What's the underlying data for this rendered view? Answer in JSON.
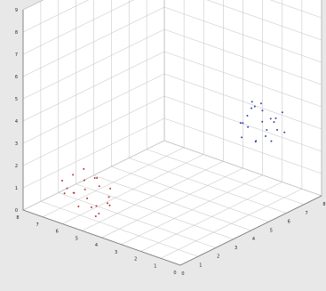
{
  "colors": {
    "figure_background": "#e8e8e8",
    "pane": "#ffffff",
    "grid": "#c9c9c9",
    "axis": "#777777",
    "marker_blue": "#3b43a6",
    "marker_red": "#b03a3a"
  },
  "chart_data": {
    "type": "scatter",
    "projection": "3d",
    "grid": true,
    "title": "",
    "xlabel": "",
    "ylabel": "",
    "zlabel": "",
    "xlim": [
      0,
      8
    ],
    "ylim": [
      0,
      8
    ],
    "zlim": [
      0,
      9
    ],
    "x_ticks": [
      "0",
      "1",
      "2",
      "3",
      "4",
      "5",
      "6",
      "7",
      "8"
    ],
    "y_ticks": [
      "0",
      "1",
      "2",
      "3",
      "4",
      "5",
      "6",
      "7",
      "8"
    ],
    "z_ticks": [
      "0",
      "1",
      "2",
      "3",
      "4",
      "5",
      "6",
      "7",
      "8",
      "9"
    ],
    "series": [
      {
        "color": "#b03a3a",
        "points": [
          [
            1.0,
            6.3,
            0.9
          ],
          [
            1.4,
            6.0,
            0.6
          ],
          [
            1.8,
            6.5,
            1.1
          ],
          [
            1.2,
            5.6,
            0.4
          ],
          [
            2.2,
            6.1,
            0.8
          ],
          [
            1.6,
            6.9,
            1.3
          ],
          [
            0.8,
            5.9,
            0.5
          ],
          [
            2.0,
            5.5,
            0.3
          ],
          [
            1.3,
            6.6,
            0.7
          ],
          [
            2.4,
            6.4,
            1.0
          ],
          [
            1.7,
            5.8,
            0.2
          ],
          [
            1.1,
            7.0,
            1.2
          ],
          [
            2.6,
            5.9,
            0.6
          ],
          [
            1.5,
            6.2,
            0.9
          ],
          [
            0.9,
            6.7,
            0.8
          ],
          [
            2.1,
            6.8,
            1.4
          ],
          [
            1.9,
            5.3,
            0.3
          ],
          [
            1.4,
            5.4,
            0.1
          ],
          [
            2.3,
            5.7,
            0.4
          ],
          [
            1.0,
            5.2,
            0.2
          ],
          [
            1.6,
            7.2,
            0.6
          ],
          [
            2.5,
            6.6,
            0.9
          ]
        ]
      },
      {
        "color": "#3b43a6",
        "points": [
          [
            6.2,
            1.4,
            3.6
          ],
          [
            6.6,
            1.0,
            3.2
          ],
          [
            5.8,
            1.8,
            3.9
          ],
          [
            6.9,
            1.6,
            3.4
          ],
          [
            6.4,
            2.1,
            4.2
          ],
          [
            5.6,
            1.2,
            3.0
          ],
          [
            7.0,
            1.1,
            3.8
          ],
          [
            6.1,
            2.3,
            3.3
          ],
          [
            6.8,
            2.0,
            4.0
          ],
          [
            5.9,
            0.9,
            3.5
          ],
          [
            6.5,
            1.5,
            2.8
          ],
          [
            7.2,
            1.7,
            3.1
          ],
          [
            6.3,
            0.8,
            3.9
          ],
          [
            5.7,
            2.0,
            2.9
          ],
          [
            6.7,
            2.4,
            3.7
          ],
          [
            6.0,
            1.6,
            4.3
          ],
          [
            6.6,
            1.3,
            2.6
          ],
          [
            7.1,
            2.2,
            3.5
          ],
          [
            5.5,
            1.5,
            3.6
          ],
          [
            6.4,
            1.9,
            2.5
          ],
          [
            6.9,
            0.9,
            3.0
          ],
          [
            6.2,
            2.5,
            3.2
          ]
        ]
      }
    ]
  }
}
